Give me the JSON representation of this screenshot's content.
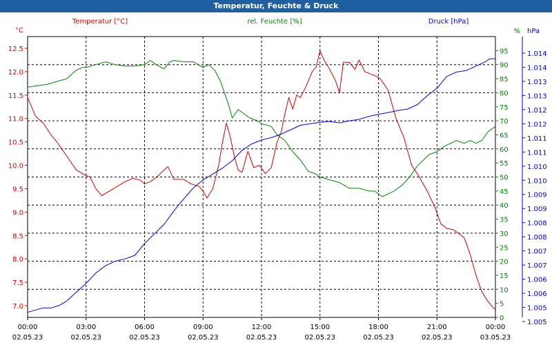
{
  "window": {
    "title": "Temperatur, Feuchte & Druck"
  },
  "colors": {
    "temp": "#cc0000",
    "hum": "#008000",
    "press": "#0000cc",
    "grid": "#000000",
    "title_bg": "#1f5fa0"
  },
  "chart_data": {
    "type": "line",
    "title": "Temperatur, Feuchte & Druck",
    "x_ticks": [
      {
        "h": 0,
        "time": "00:00",
        "date": "02.05.23"
      },
      {
        "h": 3,
        "time": "03:00",
        "date": "02.05.23"
      },
      {
        "h": 6,
        "time": "06:00",
        "date": "02.05.23"
      },
      {
        "h": 9,
        "time": "09:00",
        "date": "02.05.23"
      },
      {
        "h": 12,
        "time": "12:00",
        "date": "02.05.23"
      },
      {
        "h": 15,
        "time": "15:00",
        "date": "02.05.23"
      },
      {
        "h": 18,
        "time": "18:00",
        "date": "02.05.23"
      },
      {
        "h": 21,
        "time": "21:00",
        "date": "02.05.23"
      },
      {
        "h": 24,
        "time": "00:00",
        "date": "03.05.23"
      }
    ],
    "xlim": [
      0,
      24
    ],
    "axes": {
      "temp": {
        "label": "Temperatur [°C]",
        "unit": "°C",
        "ylim": [
          6.75,
          12.75
        ],
        "ticks": [
          "7.0",
          "7.5",
          "8.0",
          "8.5",
          "9.0",
          "9.5",
          "10.0",
          "10.5",
          "11.0",
          "11.5",
          "12.0",
          "12.5"
        ]
      },
      "hum": {
        "label": "rel. Feuchte [%]",
        "unit": "%",
        "ylim": [
          0,
          100
        ],
        "ticks": [
          "0",
          "5",
          "10",
          "15",
          "20",
          "25",
          "30",
          "35",
          "40",
          "45",
          "50",
          "55",
          "60",
          "65",
          "70",
          "75",
          "80",
          "85",
          "90",
          "95"
        ]
      },
      "press": {
        "label": "Druck [hPa]",
        "unit": "hPa",
        "ylim": [
          1004.8,
          1014.3
        ],
        "ticks": [
          "1.005",
          "1.005",
          "1.006",
          "1.006",
          "1.007",
          "1.007",
          "1.008",
          "1.008",
          "1.009",
          "1.009",
          "1.010",
          "1.010",
          "1.011",
          "1.011",
          "1.012",
          "1.012",
          "1.013",
          "1.013",
          "1.014",
          "1.014"
        ]
      }
    },
    "series": [
      {
        "name": "Temperatur [°C]",
        "axis": "temp",
        "color": "#cc0000",
        "x": [
          0,
          0.4,
          0.8,
          1.2,
          1.5,
          2.0,
          2.5,
          2.9,
          3.2,
          3.5,
          3.8,
          4.2,
          4.6,
          5.0,
          5.4,
          5.8,
          6.0,
          6.3,
          6.7,
          7.0,
          7.2,
          7.5,
          8.0,
          8.4,
          8.8,
          9.0,
          9.2,
          9.5,
          9.8,
          10.0,
          10.2,
          10.4,
          10.6,
          10.8,
          11.0,
          11.3,
          11.6,
          11.9,
          12.2,
          12.5,
          12.8,
          13.0,
          13.2,
          13.4,
          13.6,
          13.8,
          14.0,
          14.3,
          14.6,
          14.8,
          15.0,
          15.2,
          15.5,
          15.8,
          16.0,
          16.2,
          16.5,
          16.8,
          17.0,
          17.3,
          17.6,
          17.9,
          18.1,
          18.5,
          18.9,
          19.3,
          19.7,
          20.1,
          20.5,
          20.9,
          21.2,
          21.5,
          21.8,
          22.1,
          22.4,
          22.7,
          23.0,
          23.3,
          23.6,
          23.9,
          24.0
        ],
        "y": [
          11.45,
          11.05,
          10.9,
          10.65,
          10.5,
          10.2,
          9.9,
          9.8,
          9.75,
          9.5,
          9.35,
          9.45,
          9.55,
          9.65,
          9.72,
          9.68,
          9.6,
          9.65,
          9.78,
          9.9,
          9.97,
          9.7,
          9.7,
          9.6,
          9.55,
          9.45,
          9.3,
          9.5,
          10.0,
          10.5,
          10.9,
          10.6,
          10.2,
          9.9,
          9.85,
          10.3,
          9.95,
          10.0,
          9.82,
          9.95,
          10.5,
          10.7,
          11.1,
          11.45,
          11.2,
          11.5,
          11.45,
          11.7,
          12.0,
          12.1,
          12.45,
          12.25,
          12.05,
          11.8,
          11.55,
          12.2,
          12.2,
          12.05,
          12.25,
          12.0,
          11.95,
          11.9,
          11.85,
          11.6,
          11.0,
          10.6,
          10.0,
          9.75,
          9.45,
          9.1,
          8.75,
          8.65,
          8.63,
          8.55,
          8.45,
          8.1,
          7.65,
          7.3,
          7.1,
          6.95,
          6.92
        ]
      },
      {
        "name": "rel. Feuchte [%]",
        "axis": "hum",
        "color": "#008000",
        "x": [
          0,
          0.5,
          1,
          1.5,
          2,
          2.5,
          2.8,
          3,
          3.5,
          4,
          4.5,
          5,
          5.5,
          6,
          6.3,
          6.6,
          7,
          7.3,
          7.5,
          8,
          8.5,
          9,
          9.3,
          9.6,
          9.9,
          10,
          10.3,
          10.5,
          10.8,
          11,
          11.4,
          11.8,
          12,
          12.5,
          12.8,
          13.2,
          13.6,
          14,
          14.4,
          14.8,
          15,
          15.5,
          16,
          16.5,
          17,
          17.5,
          17.8,
          18,
          18.2,
          18.5,
          18.8,
          19.2,
          19.6,
          20,
          20.3,
          20.6,
          21,
          21.4,
          21.7,
          22,
          22.4,
          22.7,
          23,
          23.3,
          23.6,
          24
        ],
        "y": [
          82,
          82.5,
          83,
          84,
          85,
          88,
          89,
          89,
          90,
          91,
          90,
          89.5,
          89.5,
          90,
          91.5,
          90,
          88.5,
          91,
          91.5,
          91,
          91,
          89,
          90,
          88,
          84,
          82,
          76,
          71,
          74,
          73,
          71,
          70,
          69,
          68,
          65,
          63,
          59,
          56,
          52,
          51,
          50,
          49,
          48,
          46,
          46,
          45,
          45,
          44,
          43,
          44,
          45,
          47,
          50,
          54,
          56,
          58,
          59,
          61,
          62,
          63,
          62,
          63,
          62,
          63,
          66,
          68
        ]
      },
      {
        "name": "Druck [hPa]",
        "axis": "press",
        "color": "#0000cc",
        "x": [
          0,
          0.4,
          0.8,
          1.2,
          1.6,
          2.0,
          2.5,
          3.0,
          3.5,
          4.0,
          4.5,
          5.0,
          5.5,
          6.0,
          6.5,
          7.0,
          7.5,
          8.0,
          8.5,
          9.0,
          9.5,
          10.0,
          10.5,
          11.0,
          11.5,
          12.0,
          12.5,
          13.0,
          13.5,
          14.0,
          14.5,
          15.0,
          15.5,
          16.0,
          16.5,
          17.0,
          17.5,
          18.0,
          18.5,
          19.0,
          19.5,
          20.0,
          20.5,
          21.0,
          21.5,
          22.0,
          22.5,
          23.0,
          23.5,
          23.7,
          24.0
        ],
        "y": [
          1004.97,
          1005.05,
          1005.12,
          1005.12,
          1005.2,
          1005.35,
          1005.65,
          1005.95,
          1006.3,
          1006.55,
          1006.7,
          1006.78,
          1006.9,
          1007.3,
          1007.62,
          1007.95,
          1008.4,
          1008.8,
          1009.18,
          1009.45,
          1009.65,
          1009.85,
          1010.1,
          1010.45,
          1010.67,
          1010.8,
          1010.88,
          1011.0,
          1011.15,
          1011.3,
          1011.35,
          1011.4,
          1011.43,
          1011.38,
          1011.45,
          1011.5,
          1011.6,
          1011.67,
          1011.73,
          1011.8,
          1011.85,
          1012.0,
          1012.3,
          1012.55,
          1012.95,
          1013.1,
          1013.15,
          1013.3,
          1013.45,
          1013.55,
          1013.55
        ]
      }
    ]
  }
}
